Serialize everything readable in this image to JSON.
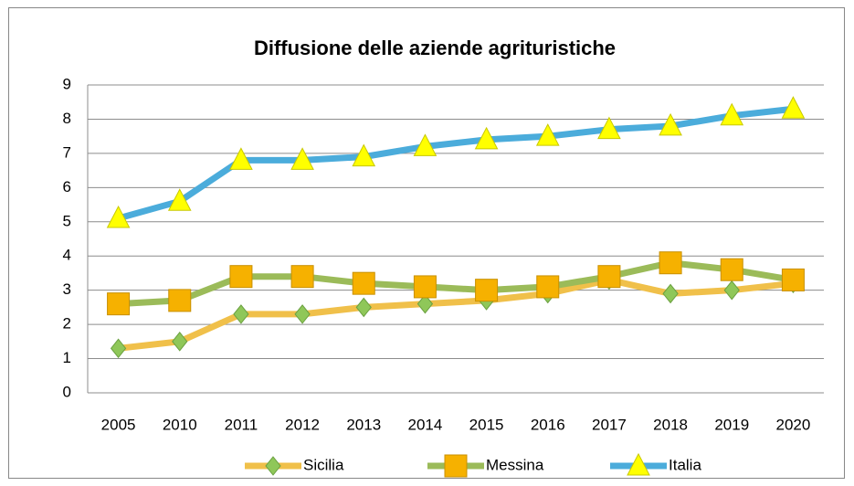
{
  "chart_data": {
    "type": "line",
    "title": "Diffusione delle aziende agrituristiche",
    "categories": [
      "2005",
      "2010",
      "2011",
      "2012",
      "2013",
      "2014",
      "2015",
      "2016",
      "2017",
      "2018",
      "2019",
      "2020"
    ],
    "series": [
      {
        "name": "Sicilia",
        "color": "#f0c04a",
        "marker": "diamond",
        "marker_color": "#8fc759",
        "values": [
          1.3,
          1.5,
          2.3,
          2.3,
          2.5,
          2.6,
          2.7,
          2.9,
          3.3,
          2.9,
          3.0,
          3.2
        ]
      },
      {
        "name": "Messina",
        "color": "#9bbb59",
        "marker": "square",
        "marker_color": "#f6b100",
        "values": [
          2.6,
          2.7,
          3.4,
          3.4,
          3.2,
          3.1,
          3.0,
          3.1,
          3.4,
          3.8,
          3.6,
          3.3
        ]
      },
      {
        "name": "Italia",
        "color": "#4bacdb",
        "marker": "triangle",
        "marker_color": "#ffff00",
        "values": [
          5.1,
          5.6,
          6.8,
          6.8,
          6.9,
          7.2,
          7.4,
          7.5,
          7.7,
          7.8,
          8.1,
          8.3
        ]
      }
    ],
    "ylim": [
      0,
      9
    ],
    "yticks": [
      0,
      1,
      2,
      3,
      4,
      5,
      6,
      7,
      8,
      9
    ],
    "grid": true,
    "legend": "bottom"
  }
}
